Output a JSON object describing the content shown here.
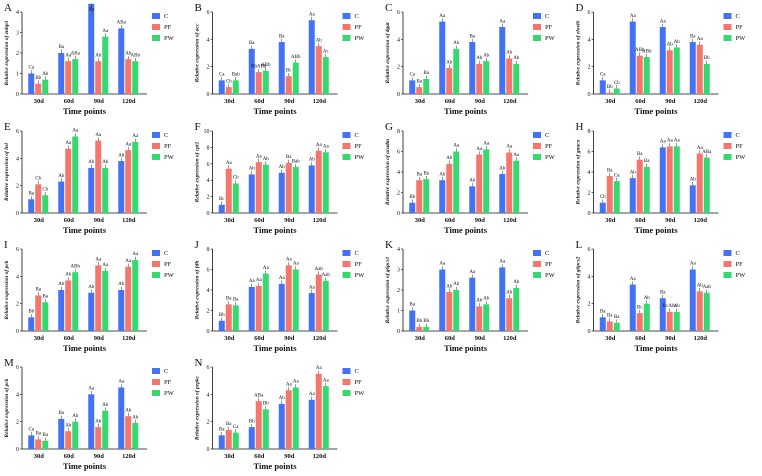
{
  "legend": {
    "entries": [
      {
        "name": "C",
        "color": "#4472f5"
      },
      {
        "name": "PF",
        "color": "#f4766c"
      },
      {
        "name": "PW",
        "color": "#36d86f"
      }
    ]
  },
  "chart_data": [
    {
      "panel": "A",
      "type": "bar",
      "ylabel": "Relative expression of znhp1",
      "xlabel": "Time points",
      "categories": [
        "30d",
        "60d",
        "90d",
        "120d"
      ],
      "ylim": [
        0,
        4
      ],
      "yticks": [
        0,
        1,
        2,
        3,
        4
      ],
      "series": [
        {
          "name": "C",
          "values": [
            1.0,
            2.0,
            4.4,
            3.2
          ]
        },
        {
          "name": "PF",
          "values": [
            0.5,
            1.6,
            1.6,
            1.7
          ]
        },
        {
          "name": "PW",
          "values": [
            0.7,
            1.7,
            2.8,
            1.6
          ]
        }
      ],
      "sig": [
        [
          "Ca",
          "Bb",
          "Ab"
        ],
        [
          "Ba",
          "Aa",
          "ABa"
        ],
        [
          "Aa",
          "Ab",
          "Aa"
        ],
        [
          "ABa",
          "Ab",
          "ABb"
        ]
      ]
    },
    {
      "panel": "B",
      "type": "bar",
      "ylabel": "Relative expression of acc",
      "xlabel": "Time points",
      "categories": [
        "30d",
        "60d",
        "90d",
        "120d"
      ],
      "ylim": [
        0,
        6
      ],
      "yticks": [
        0,
        2,
        4,
        6
      ],
      "series": [
        {
          "name": "C",
          "values": [
            1.0,
            3.3,
            3.8,
            5.4
          ]
        },
        {
          "name": "PF",
          "values": [
            0.5,
            1.6,
            1.3,
            3.5
          ]
        },
        {
          "name": "PW",
          "values": [
            1.0,
            1.7,
            2.3,
            2.7
          ]
        }
      ],
      "sig": [
        [
          "Ca",
          "Cb",
          "Bab"
        ],
        [
          "Ba",
          "BbABb",
          "ABb"
        ],
        [
          "Ba",
          "Bc",
          "ABb"
        ],
        [
          "Aa",
          "Ab",
          "Ac"
        ]
      ]
    },
    {
      "panel": "C",
      "type": "bar",
      "ylabel": "Relative expression of dgat",
      "xlabel": "Time points",
      "categories": [
        "30d",
        "60d",
        "90d",
        "120d"
      ],
      "ylim": [
        0,
        6
      ],
      "yticks": [
        0,
        2,
        4,
        6
      ],
      "series": [
        {
          "name": "C",
          "values": [
            1.0,
            5.3,
            3.8,
            4.9
          ]
        },
        {
          "name": "PF",
          "values": [
            0.5,
            1.9,
            2.2,
            2.6
          ]
        },
        {
          "name": "PW",
          "values": [
            1.1,
            3.3,
            2.4,
            2.2
          ]
        }
      ],
      "sig": [
        [
          "Ca",
          "Ba",
          "Ba"
        ],
        [
          "Aa",
          "Ab",
          "Ab"
        ],
        [
          "Ba",
          "Ab",
          "Ab"
        ],
        [
          "Aa",
          "Ab",
          "Ab"
        ]
      ]
    },
    {
      "panel": "D",
      "type": "bar",
      "ylabel": "Relative expression of elovl6",
      "xlabel": "Time points",
      "categories": [
        "30d",
        "60d",
        "90d",
        "120d"
      ],
      "ylim": [
        0,
        6
      ],
      "yticks": [
        0,
        2,
        4,
        6
      ],
      "series": [
        {
          "name": "C",
          "values": [
            1.0,
            5.3,
            4.9,
            3.8
          ]
        },
        {
          "name": "PF",
          "values": [
            0.1,
            2.8,
            3.2,
            3.6
          ]
        },
        {
          "name": "PW",
          "values": [
            0.4,
            2.7,
            3.4,
            2.2
          ]
        }
      ],
      "sig": [
        [
          "Ca",
          "Bb",
          "Cb"
        ],
        [
          "Aa",
          "ABb",
          "ABb"
        ],
        [
          "Aa",
          "Ab",
          "Ab"
        ],
        [
          "Ba",
          "Aa",
          "Bb"
        ]
      ]
    },
    {
      "panel": "E",
      "type": "bar",
      "ylabel": "Relative expression of hsl",
      "xlabel": "Time points",
      "categories": [
        "30d",
        "60d",
        "90d",
        "120d"
      ],
      "ylim": [
        0,
        6
      ],
      "yticks": [
        0,
        2,
        4,
        6
      ],
      "series": [
        {
          "name": "C",
          "values": [
            1.0,
            2.3,
            3.3,
            3.8
          ]
        },
        {
          "name": "PF",
          "values": [
            2.1,
            4.7,
            5.3,
            4.6
          ]
        },
        {
          "name": "PW",
          "values": [
            1.3,
            5.6,
            3.3,
            5.2
          ]
        }
      ],
      "sig": [
        [
          "Ba",
          "Cb",
          "Cb"
        ],
        [
          "Ab",
          "Aa",
          "Aa"
        ],
        [
          "Ab",
          "Aa",
          "Ab"
        ],
        [
          "Ab",
          "Aa",
          "Aa"
        ]
      ]
    },
    {
      "panel": "F",
      "type": "bar",
      "ylabel": "Relative expression of cpt1",
      "xlabel": "Time points",
      "categories": [
        "30d",
        "60d",
        "90d",
        "120d"
      ],
      "ylim": [
        0,
        10
      ],
      "yticks": [
        0,
        2,
        4,
        6,
        8,
        10
      ],
      "series": [
        {
          "name": "C",
          "values": [
            1.0,
            4.7,
            4.9,
            5.8
          ]
        },
        {
          "name": "PF",
          "values": [
            5.4,
            6.2,
            6.1,
            7.6
          ]
        },
        {
          "name": "PW",
          "values": [
            3.6,
            5.9,
            5.6,
            7.4
          ]
        }
      ],
      "sig": [
        [
          "Bc",
          "Aa",
          "Cb"
        ],
        [
          "Ab",
          "Aa",
          "Ab"
        ],
        [
          "Ab",
          "Ba",
          "Bab"
        ],
        [
          "Ab",
          "Aa",
          "Aa"
        ]
      ]
    },
    {
      "panel": "G",
      "type": "bar",
      "ylabel": "Relative expression of acadm",
      "xlabel": "Time points",
      "categories": [
        "30d",
        "60d",
        "90d",
        "120d"
      ],
      "ylim": [
        0,
        8
      ],
      "yticks": [
        0,
        2,
        4,
        6,
        8
      ],
      "series": [
        {
          "name": "C",
          "values": [
            1.0,
            3.2,
            2.6,
            3.8
          ]
        },
        {
          "name": "PF",
          "values": [
            3.2,
            4.8,
            5.7,
            5.9
          ]
        },
        {
          "name": "PW",
          "values": [
            3.3,
            6.0,
            6.2,
            5.1
          ]
        }
      ],
      "sig": [
        [
          "Bb",
          "Ba",
          "Ba"
        ],
        [
          "Ab",
          "Ab",
          "Aa"
        ],
        [
          "Ab",
          "Aa",
          "Aa"
        ],
        [
          "Ab",
          "Aa",
          "Aa"
        ]
      ]
    },
    {
      "panel": "H",
      "type": "bar",
      "ylabel": "Relative expression of gnaco",
      "xlabel": "Time points",
      "categories": [
        "30d",
        "60d",
        "90d",
        "120d"
      ],
      "ylim": [
        0,
        8
      ],
      "yticks": [
        0,
        2,
        4,
        6,
        8
      ],
      "series": [
        {
          "name": "C",
          "values": [
            1.0,
            3.4,
            6.4,
            2.7
          ]
        },
        {
          "name": "PF",
          "values": [
            3.6,
            5.2,
            6.5,
            5.8
          ]
        },
        {
          "name": "PW",
          "values": [
            3.1,
            4.5,
            6.5,
            5.4
          ]
        }
      ],
      "sig": [
        [
          "Cb",
          "Ba",
          "Ca"
        ],
        [
          "Ab",
          "Ba",
          "Ba"
        ],
        [
          "Aa",
          "Aa",
          "Aa"
        ],
        [
          "Ab",
          "Aa",
          "ABa"
        ]
      ]
    },
    {
      "panel": "I",
      "type": "bar",
      "ylabel": "Relative expression of pck",
      "xlabel": "Time points",
      "categories": [
        "30d",
        "60d",
        "90d",
        "120d"
      ],
      "ylim": [
        0,
        6
      ],
      "yticks": [
        0,
        2,
        4,
        6
      ],
      "series": [
        {
          "name": "C",
          "values": [
            1.0,
            3.0,
            2.8,
            3.0
          ]
        },
        {
          "name": "PF",
          "values": [
            2.6,
            3.7,
            4.8,
            4.7
          ]
        },
        {
          "name": "PW",
          "values": [
            2.1,
            4.3,
            4.4,
            5.2
          ]
        }
      ],
      "sig": [
        [
          "Bb",
          "Ba",
          "Ba"
        ],
        [
          "Ab",
          "Ab",
          "ABb"
        ],
        [
          "Ab",
          "Aa",
          "Aa"
        ],
        [
          "Ab",
          "Aa",
          "Aa"
        ]
      ]
    },
    {
      "panel": "J",
      "type": "bar",
      "ylabel": "Relative expression of fdh",
      "xlabel": "Time points",
      "categories": [
        "30d",
        "60d",
        "90d",
        "120d"
      ],
      "ylim": [
        0,
        8
      ],
      "yticks": [
        0,
        2,
        4,
        6,
        8
      ],
      "series": [
        {
          "name": "C",
          "values": [
            1.0,
            4.3,
            4.6,
            3.7
          ]
        },
        {
          "name": "PF",
          "values": [
            2.6,
            4.4,
            6.4,
            5.5
          ]
        },
        {
          "name": "PW",
          "values": [
            2.5,
            5.6,
            6.0,
            4.9
          ]
        }
      ],
      "sig": [
        [
          "Bb",
          "Ba",
          "Ba"
        ],
        [
          "Aa",
          "Aa",
          "Aa"
        ],
        [
          "Aa",
          "Aa",
          "Aa"
        ],
        [
          "Aa",
          "Aab",
          "Aab"
        ]
      ]
    },
    {
      "panel": "K",
      "type": "bar",
      "ylabel": "Relative expression of g6pcs1",
      "xlabel": "Time points",
      "categories": [
        "30d",
        "60d",
        "90d",
        "120d"
      ],
      "ylim": [
        0,
        4
      ],
      "yticks": [
        0,
        1,
        2,
        3,
        4
      ],
      "series": [
        {
          "name": "C",
          "values": [
            1.0,
            3.0,
            2.6,
            3.1
          ]
        },
        {
          "name": "PF",
          "values": [
            0.2,
            1.9,
            1.2,
            1.6
          ]
        },
        {
          "name": "PW",
          "values": [
            0.2,
            2.0,
            1.3,
            2.1
          ]
        }
      ],
      "sig": [
        [
          "Ba",
          "Bb",
          "Bb"
        ],
        [
          "Aa",
          "Ab",
          "Ab"
        ],
        [
          "Aa",
          "Ab",
          "Ab"
        ],
        [
          "Aa",
          "Ab",
          "Ab"
        ]
      ]
    },
    {
      "panel": "L",
      "type": "bar",
      "ylabel": "Relative expression of g6pcs2",
      "xlabel": "Time points",
      "categories": [
        "30d",
        "60d",
        "90d",
        "120d"
      ],
      "ylim": [
        0,
        6
      ],
      "yticks": [
        0,
        2,
        4,
        6
      ],
      "series": [
        {
          "name": "C",
          "values": [
            1.0,
            3.4,
            2.4,
            4.5
          ]
        },
        {
          "name": "PF",
          "values": [
            0.7,
            1.3,
            1.4,
            2.9
          ]
        },
        {
          "name": "PW",
          "values": [
            0.6,
            2.0,
            1.4,
            2.8
          ]
        }
      ],
      "sig": [
        [
          "Ba",
          "Ba",
          "Ba"
        ],
        [
          "Aa",
          "Bc",
          "Ab"
        ],
        [
          "Ba",
          "BcAbc",
          "Ab"
        ],
        [
          "Aa",
          "Ab",
          "Aab"
        ]
      ]
    },
    {
      "panel": "M",
      "type": "bar",
      "ylabel": "Relative expression of pck",
      "xlabel": "Time points",
      "categories": [
        "30d",
        "60d",
        "90d",
        "120d"
      ],
      "ylim": [
        0,
        6
      ],
      "yticks": [
        0,
        2,
        4,
        6
      ],
      "series": [
        {
          "name": "C",
          "values": [
            1.0,
            2.2,
            4.0,
            4.5
          ]
        },
        {
          "name": "PF",
          "values": [
            0.7,
            1.3,
            1.6,
            2.4
          ]
        },
        {
          "name": "PW",
          "values": [
            0.6,
            2.0,
            2.8,
            1.9
          ]
        }
      ],
      "sig": [
        [
          "Ca",
          "Ba",
          "Ba"
        ],
        [
          "Ba",
          "Ab",
          "Ab"
        ],
        [
          "Aa",
          "Ab",
          "Ab"
        ],
        [
          "Aa",
          "Ab",
          "Ab"
        ]
      ]
    },
    {
      "panel": "N",
      "type": "bar",
      "ylabel": "Relative expression of pepkc",
      "xlabel": "Time points",
      "categories": [
        "30d",
        "60d",
        "90d",
        "120d"
      ],
      "ylim": [
        0,
        6
      ],
      "yticks": [
        0,
        2,
        4,
        6
      ],
      "series": [
        {
          "name": "C",
          "values": [
            1.0,
            1.6,
            3.3,
            3.6
          ]
        },
        {
          "name": "PF",
          "values": [
            1.4,
            3.5,
            4.3,
            5.5
          ]
        },
        {
          "name": "PW",
          "values": [
            1.2,
            2.9,
            4.5,
            4.6
          ]
        }
      ],
      "sig": [
        [
          "Ba",
          "Ba",
          "Ca"
        ],
        [
          "Bb",
          "ABa",
          "Bb"
        ],
        [
          "Ab",
          "Aa",
          "Aa"
        ],
        [
          "Aa",
          "Aa",
          "Aa"
        ]
      ]
    }
  ]
}
